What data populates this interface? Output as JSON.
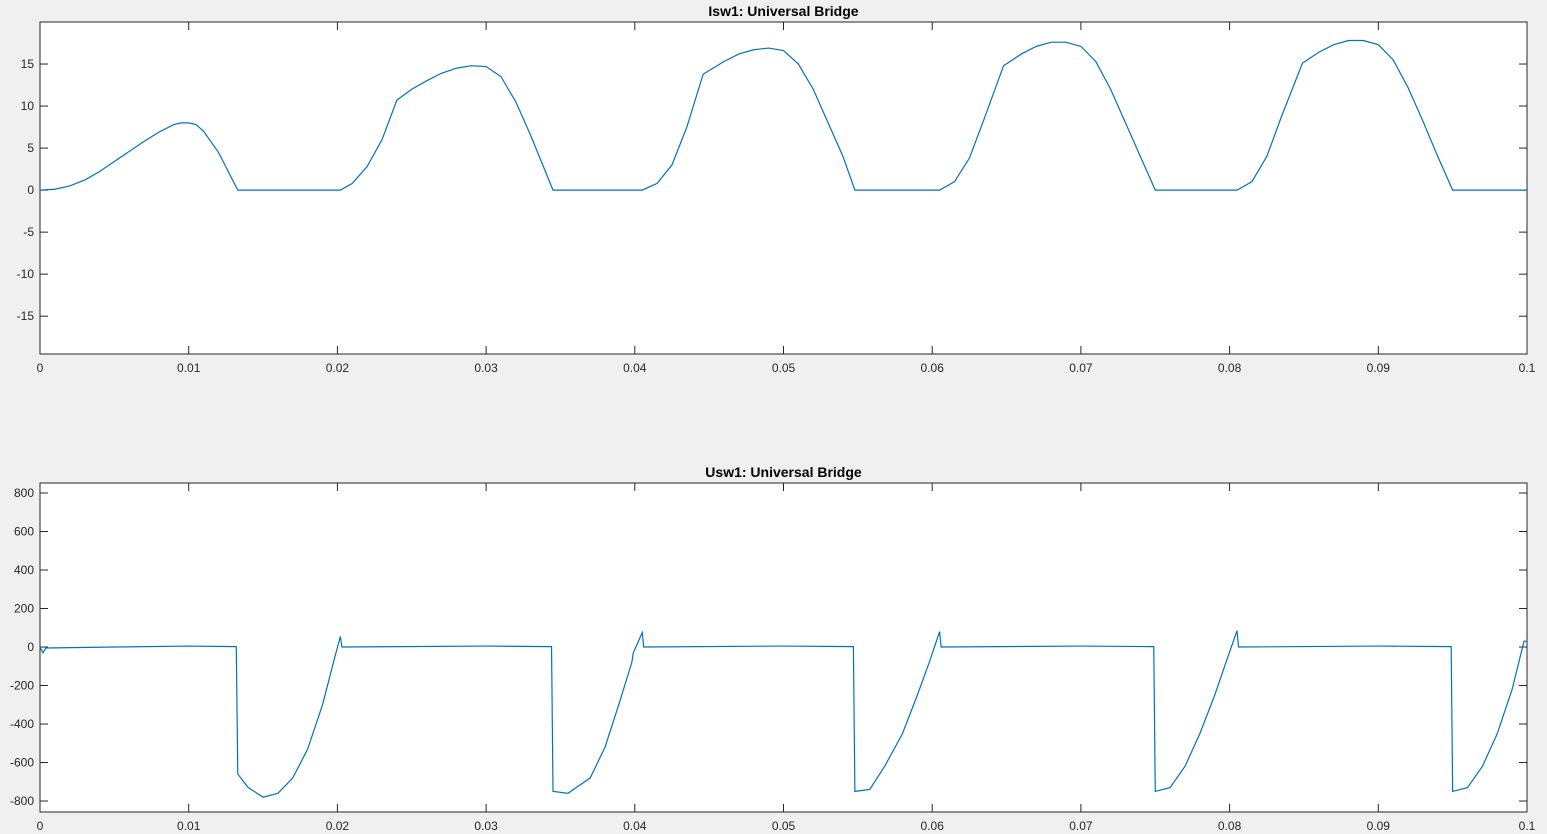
{
  "chart_data": [
    {
      "type": "line",
      "title": "Isw1: Universal Bridge",
      "x": [
        0,
        0.001,
        0.002,
        0.003,
        0.004,
        0.005,
        0.006,
        0.007,
        0.008,
        0.009,
        0.0095,
        0.01,
        0.0105,
        0.011,
        0.012,
        0.0133,
        0.0202,
        0.021,
        0.022,
        0.023,
        0.024,
        0.025,
        0.026,
        0.027,
        0.028,
        0.029,
        0.03,
        0.031,
        0.032,
        0.033,
        0.0345,
        0.0405,
        0.0415,
        0.0425,
        0.0435,
        0.0446,
        0.046,
        0.047,
        0.048,
        0.049,
        0.05,
        0.051,
        0.052,
        0.053,
        0.054,
        0.0548,
        0.0605,
        0.0615,
        0.0625,
        0.0635,
        0.0648,
        0.066,
        0.067,
        0.068,
        0.069,
        0.07,
        0.071,
        0.072,
        0.073,
        0.074,
        0.075,
        0.0805,
        0.0815,
        0.0825,
        0.0835,
        0.0849,
        0.086,
        0.087,
        0.088,
        0.089,
        0.09,
        0.091,
        0.092,
        0.093,
        0.094,
        0.095,
        0.1
      ],
      "series": [
        {
          "color": "#0072bd",
          "values": [
            0,
            0.1,
            0.5,
            1.2,
            2.2,
            3.4,
            4.6,
            5.8,
            6.9,
            7.8,
            8.0,
            8.0,
            7.8,
            7.0,
            4.5,
            0,
            0,
            0.8,
            2.8,
            6,
            10.7,
            12,
            13,
            13.9,
            14.5,
            14.8,
            14.7,
            13.5,
            10.5,
            6.5,
            0,
            0,
            0.8,
            3,
            7.5,
            13.8,
            15.3,
            16.2,
            16.7,
            16.9,
            16.6,
            15,
            12,
            8,
            4,
            0,
            0,
            1,
            3.8,
            8.5,
            14.8,
            16.2,
            17.1,
            17.6,
            17.6,
            17.1,
            15.3,
            12,
            8,
            4,
            0,
            0,
            1,
            4,
            8.8,
            15.1,
            16.4,
            17.3,
            17.8,
            17.8,
            17.3,
            15.5,
            12.2,
            8.2,
            4,
            0,
            0
          ]
        }
      ],
      "xlim": [
        0,
        0.1
      ],
      "xticks": [
        0,
        0.01,
        0.02,
        0.03,
        0.04,
        0.05,
        0.06,
        0.07,
        0.08,
        0.09,
        0.1
      ],
      "ylim": [
        -19.5,
        20
      ],
      "yticks": [
        -15,
        -10,
        -5,
        0,
        5,
        10,
        15
      ]
    },
    {
      "type": "line",
      "title": "Usw1: Universal Bridge",
      "x": [
        0,
        0.0002,
        0.0004,
        0.005,
        0.01,
        0.0132,
        0.0133,
        0.014,
        0.015,
        0.016,
        0.017,
        0.018,
        0.019,
        0.0198,
        0.0202,
        0.0203,
        0.03,
        0.0344,
        0.0345,
        0.0355,
        0.037,
        0.038,
        0.039,
        0.0398,
        0.0399,
        0.0405,
        0.0406,
        0.05,
        0.0547,
        0.0548,
        0.0558,
        0.0568,
        0.058,
        0.059,
        0.0598,
        0.0605,
        0.0606,
        0.07,
        0.0749,
        0.075,
        0.076,
        0.077,
        0.078,
        0.079,
        0.0798,
        0.0805,
        0.0806,
        0.09,
        0.0949,
        0.095,
        0.096,
        0.097,
        0.098,
        0.099,
        0.0998,
        0.1
      ],
      "series": [
        {
          "color": "#0072bd",
          "values": [
            0,
            -30,
            -5,
            0,
            5,
            2,
            -660,
            -730,
            -780,
            -760,
            -680,
            -530,
            -300,
            -60,
            55,
            0,
            5,
            2,
            -750,
            -760,
            -680,
            -520,
            -280,
            -80,
            -30,
            75,
            0,
            5,
            2,
            -750,
            -740,
            -620,
            -450,
            -250,
            -80,
            80,
            0,
            5,
            2,
            -750,
            -730,
            -620,
            -450,
            -250,
            -70,
            85,
            0,
            5,
            2,
            -750,
            -730,
            -620,
            -450,
            -220,
            30,
            30
          ]
        }
      ],
      "xlim": [
        0,
        0.1
      ],
      "xticks": [
        0,
        0.01,
        0.02,
        0.03,
        0.04,
        0.05,
        0.06,
        0.07,
        0.08,
        0.09,
        0.1
      ],
      "ylim": [
        -857,
        852
      ],
      "yticks": [
        -800,
        -600,
        -400,
        -200,
        0,
        200,
        400,
        600,
        800
      ]
    }
  ]
}
